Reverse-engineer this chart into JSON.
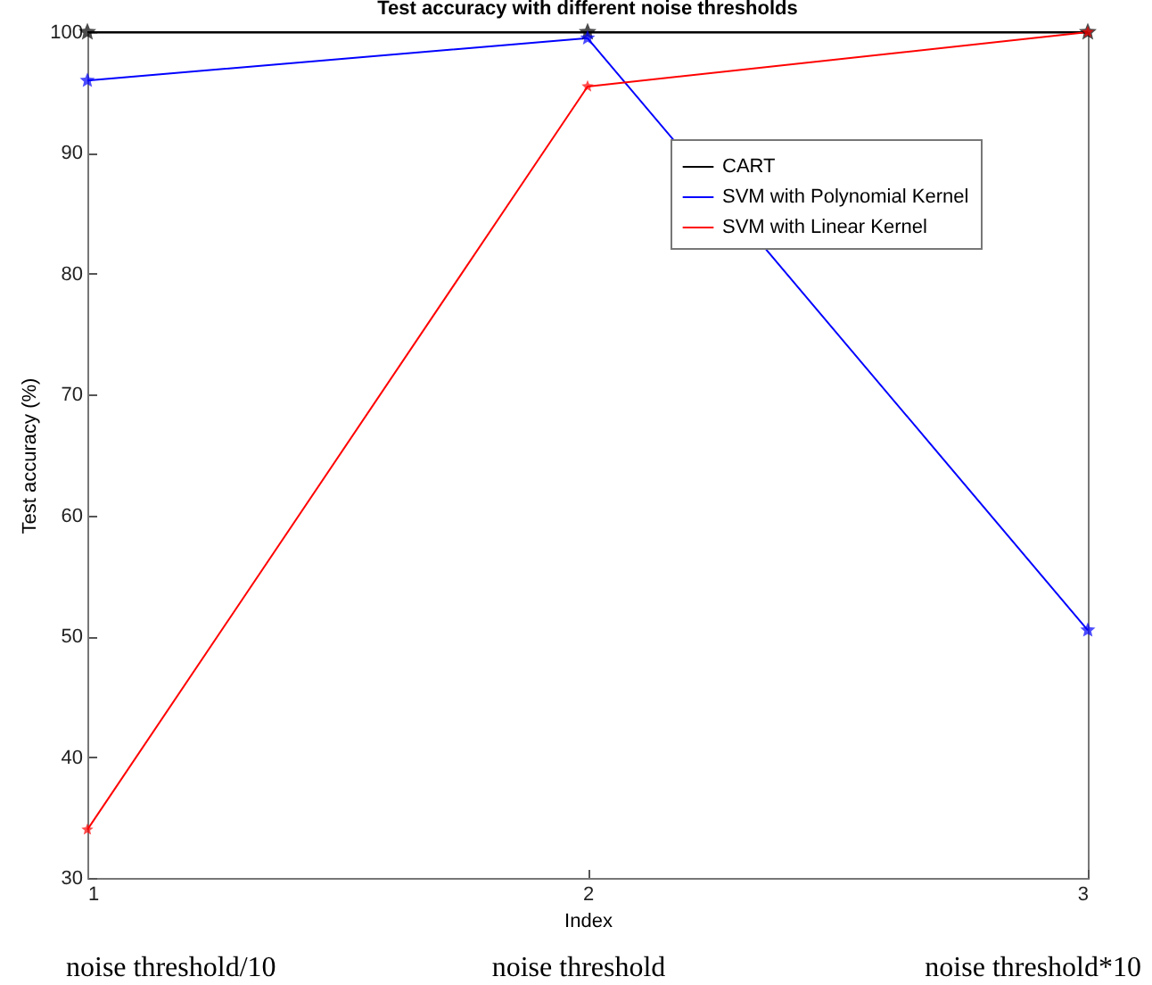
{
  "chart_data": {
    "type": "line",
    "title": "Test accuracy with different noise thresholds",
    "xlabel": "Index",
    "ylabel": "Test accuracy (%)",
    "x": [
      1,
      2,
      3
    ],
    "xlim": [
      1,
      3
    ],
    "xticks": [
      1,
      2,
      3
    ],
    "ylim": [
      30,
      100
    ],
    "yticks": [
      30,
      40,
      50,
      60,
      70,
      80,
      90,
      100
    ],
    "series": [
      {
        "name": "CART",
        "color": "#000000",
        "values": [
          100,
          100,
          100
        ]
      },
      {
        "name": "SVM with Polynomial Kernel",
        "color": "#0000ff",
        "values": [
          96,
          99.5,
          50.5
        ]
      },
      {
        "name": "SVM with Linear Kernel",
        "color": "#ff0000",
        "values": [
          34,
          95.5,
          100
        ]
      }
    ],
    "marker": "star",
    "line_style": "solid",
    "legend": "top right",
    "grid": false,
    "annotations": [
      "noise threshold/10",
      "noise threshold",
      "noise threshold*10"
    ]
  }
}
